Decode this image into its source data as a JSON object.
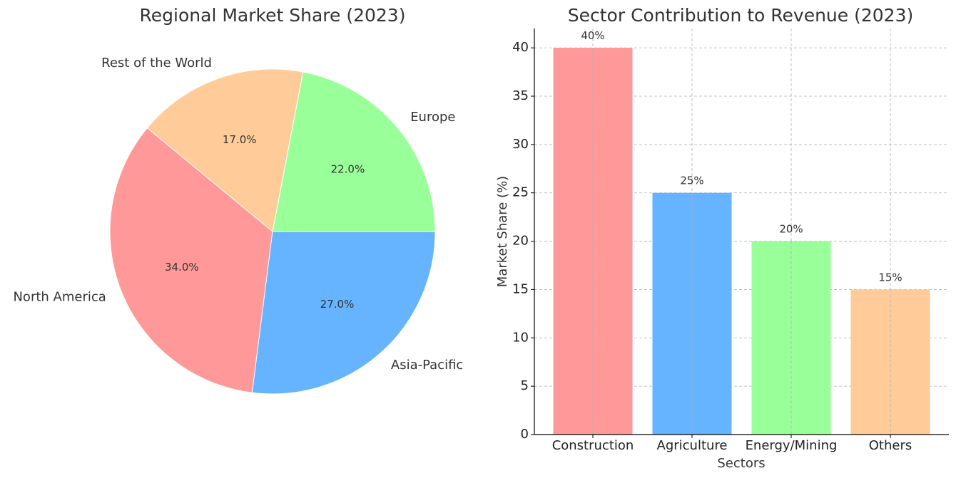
{
  "chart_data": [
    {
      "type": "pie",
      "title": "Regional Market Share (2023)",
      "slices": [
        {
          "label": "Europe",
          "value": 22.0,
          "pct_label": "22.0%",
          "color": "#99ff99"
        },
        {
          "label": "Rest of the World",
          "value": 17.0,
          "pct_label": "17.0%",
          "color": "#ffcc99"
        },
        {
          "label": "North America",
          "value": 34.0,
          "pct_label": "34.0%",
          "color": "#ff9999"
        },
        {
          "label": "Asia-Pacific",
          "value": 27.0,
          "pct_label": "27.0%",
          "color": "#66b3ff"
        }
      ],
      "start_angle_deg": 0,
      "direction": "counterclockwise"
    },
    {
      "type": "bar",
      "title": "Sector Contribution to Revenue (2023)",
      "categories": [
        "Construction",
        "Agriculture",
        "Energy/Mining",
        "Others"
      ],
      "values": [
        40,
        25,
        20,
        15
      ],
      "value_labels": [
        "40%",
        "25%",
        "20%",
        "15%"
      ],
      "colors": [
        "#ff9999",
        "#66b3ff",
        "#99ff99",
        "#ffcc99"
      ],
      "xlabel": "Sectors",
      "ylabel": "Market Share (%)",
      "ylim": [
        0,
        42
      ],
      "yticks": [
        0,
        5,
        10,
        15,
        20,
        25,
        30,
        35,
        40
      ],
      "grid": true
    }
  ]
}
